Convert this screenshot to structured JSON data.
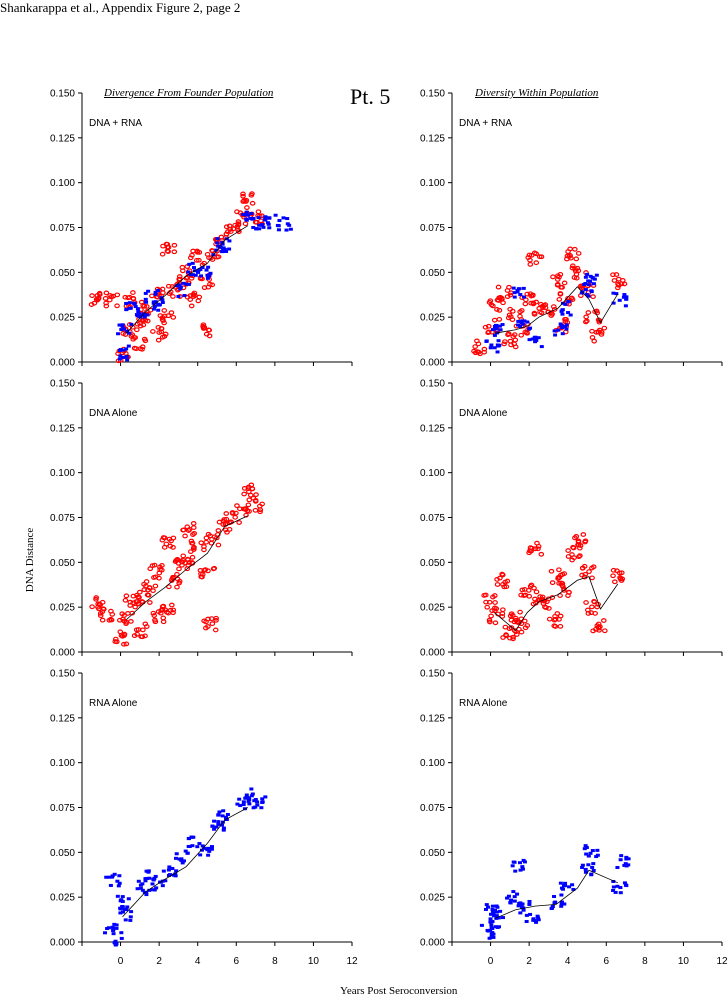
{
  "header": "Shankarappa et al., Appendix Figure 2, page  2",
  "patient_label": "Pt. 5",
  "column_titles": [
    "Divergence From Founder Population",
    "Diversity Within Population"
  ],
  "ylabel": "DNA Distance",
  "xlabel": "Years Post Seroconversion",
  "colors": {
    "dna": "#ff0000",
    "rna": "#0000ff",
    "line": "#000000"
  },
  "chart_data": [
    {
      "type": "scatter",
      "panel_label": "DNA + RNA",
      "metric": "divergence",
      "xlim": [
        -2,
        12
      ],
      "ylim": [
        0,
        0.15
      ],
      "yticks": [
        "0.000",
        "0.025",
        "0.050",
        "0.075",
        "0.100",
        "0.125",
        "0.150"
      ],
      "xticks": [],
      "series": [
        {
          "kind": "DNA",
          "points": [
            [
              -1.2,
              0.035
            ],
            [
              -0.5,
              0.035
            ],
            [
              0.2,
              0.004
            ],
            [
              0.3,
              0.018
            ],
            [
              0.6,
              0.035
            ],
            [
              1.0,
              0.01
            ],
            [
              1.2,
              0.02
            ],
            [
              1.4,
              0.03
            ],
            [
              1.9,
              0.04
            ],
            [
              2.0,
              0.016
            ],
            [
              2.4,
              0.025
            ],
            [
              2.5,
              0.062
            ],
            [
              2.8,
              0.04
            ],
            [
              3.2,
              0.045
            ],
            [
              3.5,
              0.05
            ],
            [
              3.8,
              0.035
            ],
            [
              4.0,
              0.058
            ],
            [
              4.5,
              0.045
            ],
            [
              4.6,
              0.018
            ],
            [
              4.8,
              0.06
            ],
            [
              5.3,
              0.068
            ],
            [
              5.8,
              0.075
            ],
            [
              6.3,
              0.08
            ],
            [
              6.7,
              0.09
            ],
            [
              7.0,
              0.08
            ]
          ]
        },
        {
          "kind": "RNA",
          "points": [
            [
              0.1,
              0.005
            ],
            [
              0.2,
              0.018
            ],
            [
              0.6,
              0.03
            ],
            [
              1.1,
              0.028
            ],
            [
              1.6,
              0.036
            ],
            [
              2.0,
              0.032
            ],
            [
              3.2,
              0.04
            ],
            [
              3.8,
              0.052
            ],
            [
              4.4,
              0.05
            ],
            [
              5.1,
              0.062
            ],
            [
              5.3,
              0.065
            ],
            [
              6.7,
              0.08
            ],
            [
              7.2,
              0.078
            ],
            [
              7.7,
              0.078
            ],
            [
              8.5,
              0.077
            ]
          ]
        }
      ],
      "mean_line": [
        [
          0.3,
          0.016
        ],
        [
          1.3,
          0.028
        ],
        [
          2.3,
          0.037
        ],
        [
          3.4,
          0.048
        ],
        [
          4.5,
          0.055
        ],
        [
          5.4,
          0.068
        ],
        [
          6.6,
          0.076
        ]
      ]
    },
    {
      "type": "scatter",
      "panel_label": "DNA + RNA",
      "metric": "diversity",
      "xlim": [
        -2,
        12
      ],
      "ylim": [
        0,
        0.15
      ],
      "yticks": [
        "0.000",
        "0.025",
        "0.050",
        "0.075",
        "0.100",
        "0.125",
        "0.150"
      ],
      "xticks": [],
      "series": [
        {
          "kind": "DNA",
          "points": [
            [
              -0.6,
              0.008
            ],
            [
              0.1,
              0.02
            ],
            [
              0.3,
              0.032
            ],
            [
              0.7,
              0.038
            ],
            [
              1.0,
              0.012
            ],
            [
              1.3,
              0.026
            ],
            [
              1.6,
              0.018
            ],
            [
              1.9,
              0.035
            ],
            [
              2.3,
              0.057
            ],
            [
              2.5,
              0.03
            ],
            [
              3.0,
              0.028
            ],
            [
              3.5,
              0.045
            ],
            [
              3.7,
              0.02
            ],
            [
              3.9,
              0.036
            ],
            [
              4.3,
              0.06
            ],
            [
              4.6,
              0.05
            ],
            [
              5.0,
              0.04
            ],
            [
              5.3,
              0.025
            ],
            [
              5.6,
              0.015
            ],
            [
              6.7,
              0.045
            ]
          ]
        },
        {
          "kind": "RNA",
          "points": [
            [
              0.1,
              0.008
            ],
            [
              0.4,
              0.018
            ],
            [
              1.5,
              0.04
            ],
            [
              1.7,
              0.02
            ],
            [
              2.3,
              0.012
            ],
            [
              3.6,
              0.018
            ],
            [
              4.0,
              0.03
            ],
            [
              5.0,
              0.04
            ],
            [
              5.2,
              0.045
            ],
            [
              6.7,
              0.035
            ]
          ]
        }
      ],
      "mean_line": [
        [
          0.2,
          0.016
        ],
        [
          1.3,
          0.018
        ],
        [
          1.9,
          0.02
        ],
        [
          2.5,
          0.025
        ],
        [
          3.5,
          0.03
        ],
        [
          4.5,
          0.042
        ],
        [
          5.1,
          0.035
        ],
        [
          5.7,
          0.022
        ],
        [
          6.6,
          0.038
        ]
      ]
    },
    {
      "type": "scatter",
      "panel_label": "DNA Alone",
      "metric": "divergence",
      "xlim": [
        -2,
        12
      ],
      "ylim": [
        0,
        0.15
      ],
      "yticks": [
        "0.000",
        "0.025",
        "0.050",
        "0.075",
        "0.100",
        "0.125",
        "0.150"
      ],
      "xticks": [],
      "series": [
        {
          "kind": "DNA",
          "points": [
            [
              -1.2,
              0.027
            ],
            [
              -0.7,
              0.02
            ],
            [
              0.0,
              0.008
            ],
            [
              0.3,
              0.018
            ],
            [
              0.6,
              0.028
            ],
            [
              1.0,
              0.012
            ],
            [
              1.2,
              0.03
            ],
            [
              1.5,
              0.038
            ],
            [
              1.9,
              0.045
            ],
            [
              2.0,
              0.02
            ],
            [
              2.4,
              0.025
            ],
            [
              2.5,
              0.06
            ],
            [
              2.8,
              0.04
            ],
            [
              3.2,
              0.048
            ],
            [
              3.5,
              0.052
            ],
            [
              3.6,
              0.068
            ],
            [
              4.0,
              0.058
            ],
            [
              4.5,
              0.045
            ],
            [
              4.6,
              0.015
            ],
            [
              4.8,
              0.062
            ],
            [
              5.3,
              0.07
            ],
            [
              5.8,
              0.075
            ],
            [
              6.3,
              0.08
            ],
            [
              6.7,
              0.09
            ],
            [
              7.0,
              0.082
            ]
          ]
        }
      ],
      "mean_line": [
        [
          0.3,
          0.018
        ],
        [
          1.3,
          0.028
        ],
        [
          2.3,
          0.036
        ],
        [
          3.4,
          0.046
        ],
        [
          4.5,
          0.055
        ],
        [
          5.4,
          0.07
        ],
        [
          6.6,
          0.076
        ]
      ]
    },
    {
      "type": "scatter",
      "panel_label": "DNA Alone",
      "metric": "diversity",
      "xlim": [
        -2,
        12
      ],
      "ylim": [
        0,
        0.15
      ],
      "yticks": [
        "0.000",
        "0.025",
        "0.050",
        "0.075",
        "0.100",
        "0.125",
        "0.150"
      ],
      "xticks": [],
      "series": [
        {
          "kind": "DNA",
          "points": [
            [
              0.0,
              0.028
            ],
            [
              0.3,
              0.02
            ],
            [
              0.6,
              0.04
            ],
            [
              1.0,
              0.01
            ],
            [
              1.3,
              0.02
            ],
            [
              1.6,
              0.015
            ],
            [
              1.9,
              0.035
            ],
            [
              2.3,
              0.057
            ],
            [
              2.5,
              0.03
            ],
            [
              3.0,
              0.028
            ],
            [
              3.3,
              0.018
            ],
            [
              3.5,
              0.042
            ],
            [
              3.9,
              0.035
            ],
            [
              4.3,
              0.055
            ],
            [
              4.6,
              0.062
            ],
            [
              5.0,
              0.045
            ],
            [
              5.3,
              0.025
            ],
            [
              5.6,
              0.015
            ],
            [
              6.7,
              0.042
            ]
          ]
        }
      ],
      "mean_line": [
        [
          0.2,
          0.022
        ],
        [
          1.3,
          0.012
        ],
        [
          1.9,
          0.022
        ],
        [
          2.5,
          0.028
        ],
        [
          3.5,
          0.032
        ],
        [
          4.5,
          0.04
        ],
        [
          5.1,
          0.042
        ],
        [
          5.7,
          0.024
        ],
        [
          6.6,
          0.038
        ]
      ]
    },
    {
      "type": "scatter",
      "panel_label": "RNA Alone",
      "metric": "divergence",
      "xlim": [
        -2,
        12
      ],
      "ylim": [
        0,
        0.15
      ],
      "yticks": [
        "0.000",
        "0.025",
        "0.050",
        "0.075",
        "0.100",
        "0.125",
        "0.150"
      ],
      "xticks": [
        "0",
        "2",
        "4",
        "6",
        "8",
        "10",
        "12"
      ],
      "series": [
        {
          "kind": "RNA",
          "points": [
            [
              -0.5,
              0.008
            ],
            [
              0.0,
              0.002
            ],
            [
              0.1,
              0.022
            ],
            [
              0.3,
              0.015
            ],
            [
              -0.4,
              0.035
            ],
            [
              1.2,
              0.03
            ],
            [
              1.6,
              0.036
            ],
            [
              2.0,
              0.032
            ],
            [
              2.6,
              0.04
            ],
            [
              3.2,
              0.048
            ],
            [
              3.8,
              0.055
            ],
            [
              4.4,
              0.05
            ],
            [
              5.1,
              0.065
            ],
            [
              5.3,
              0.07
            ],
            [
              6.7,
              0.082
            ],
            [
              6.4,
              0.078
            ],
            [
              7.2,
              0.078
            ]
          ]
        }
      ],
      "mean_line": [
        [
          0.1,
          0.014
        ],
        [
          1.3,
          0.028
        ],
        [
          2.3,
          0.035
        ],
        [
          3.4,
          0.042
        ],
        [
          4.5,
          0.055
        ],
        [
          5.4,
          0.068
        ],
        [
          6.6,
          0.075
        ]
      ]
    },
    {
      "type": "scatter",
      "panel_label": "RNA Alone",
      "metric": "diversity",
      "xlim": [
        -2,
        12
      ],
      "ylim": [
        0,
        0.15
      ],
      "yticks": [
        "0.000",
        "0.025",
        "0.050",
        "0.075",
        "0.100",
        "0.125",
        "0.150"
      ],
      "xticks": [
        "0",
        "2",
        "4",
        "6",
        "8",
        "10",
        "12"
      ],
      "series": [
        {
          "kind": "RNA",
          "points": [
            [
              -0.2,
              0.008
            ],
            [
              0.1,
              0.02
            ],
            [
              0.2,
              0.005
            ],
            [
              0.3,
              0.015
            ],
            [
              1.2,
              0.025
            ],
            [
              1.5,
              0.042
            ],
            [
              1.7,
              0.02
            ],
            [
              2.2,
              0.012
            ],
            [
              3.5,
              0.022
            ],
            [
              4.0,
              0.03
            ],
            [
              5.0,
              0.04
            ],
            [
              5.2,
              0.05
            ],
            [
              6.7,
              0.03
            ],
            [
              6.8,
              0.045
            ]
          ]
        }
      ],
      "mean_line": [
        [
          0.2,
          0.013
        ],
        [
          1.3,
          0.018
        ],
        [
          2.3,
          0.02
        ],
        [
          3.4,
          0.021
        ],
        [
          4.5,
          0.03
        ],
        [
          5.1,
          0.04
        ],
        [
          6.6,
          0.033
        ]
      ]
    }
  ]
}
